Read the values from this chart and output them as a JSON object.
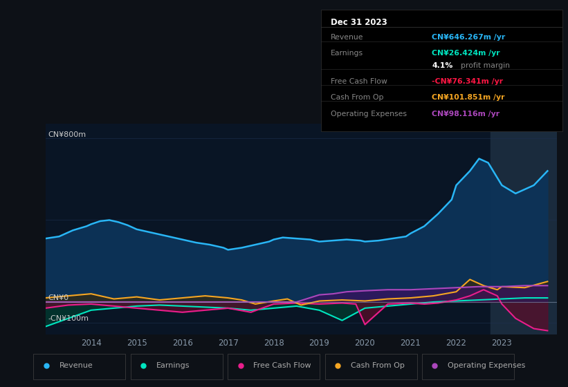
{
  "background_color": "#0d1117",
  "plot_bg_color": "#091525",
  "title": "Dec 31 2023",
  "y_label_top": "CN¥800m",
  "y_label_zero": "CN¥0",
  "y_label_neg": "-CN¥100m",
  "legend_items": [
    "Revenue",
    "Earnings",
    "Free Cash Flow",
    "Cash From Op",
    "Operating Expenses"
  ],
  "legend_colors": [
    "#29b6f6",
    "#00e5c0",
    "#e91e8c",
    "#f5a623",
    "#ab47bc"
  ],
  "info_box": {
    "title": "Dec 31 2023",
    "rows": [
      {
        "label": "Revenue",
        "value": "CN¥646.267m /yr",
        "value_color": "#29b6f6"
      },
      {
        "label": "Earnings",
        "value": "CN¥26.424m /yr",
        "value_color": "#00e5c0"
      },
      {
        "label": "",
        "value": "4.1% profit margin",
        "value_color": "#ffffff"
      },
      {
        "label": "Free Cash Flow",
        "value": "-CN¥76.341m /yr",
        "value_color": "#ff1744"
      },
      {
        "label": "Cash From Op",
        "value": "CN¥101.851m /yr",
        "value_color": "#f5a623"
      },
      {
        "label": "Operating Expenses",
        "value": "CN¥98.116m /yr",
        "value_color": "#ab47bc"
      }
    ]
  },
  "x_ticks": [
    2014,
    2015,
    2016,
    2017,
    2018,
    2019,
    2020,
    2021,
    2022,
    2023
  ],
  "ylim": [
    -160,
    870
  ],
  "revenue_x": [
    2013.0,
    2013.3,
    2013.6,
    2013.9,
    2014.0,
    2014.2,
    2014.4,
    2014.6,
    2014.8,
    2015.0,
    2015.2,
    2015.4,
    2015.7,
    2016.0,
    2016.3,
    2016.6,
    2016.9,
    2017.0,
    2017.3,
    2017.6,
    2017.9,
    2018.0,
    2018.2,
    2018.5,
    2018.8,
    2019.0,
    2019.3,
    2019.6,
    2019.9,
    2020.0,
    2020.3,
    2020.6,
    2020.9,
    2021.0,
    2021.3,
    2021.6,
    2021.9,
    2022.0,
    2022.3,
    2022.5,
    2022.7,
    2023.0,
    2023.3,
    2023.7,
    2024.0
  ],
  "revenue_y": [
    310,
    320,
    350,
    370,
    380,
    395,
    400,
    390,
    375,
    355,
    345,
    335,
    320,
    305,
    290,
    280,
    265,
    255,
    265,
    280,
    295,
    305,
    315,
    310,
    305,
    295,
    300,
    305,
    300,
    295,
    300,
    310,
    320,
    335,
    370,
    430,
    500,
    570,
    640,
    700,
    680,
    570,
    530,
    570,
    640
  ],
  "earnings_x": [
    2013.0,
    2013.5,
    2014.0,
    2014.5,
    2015.0,
    2015.5,
    2016.0,
    2016.5,
    2017.0,
    2017.5,
    2018.0,
    2018.5,
    2019.0,
    2019.5,
    2020.0,
    2020.5,
    2021.0,
    2021.5,
    2022.0,
    2022.5,
    2023.0,
    2023.5,
    2024.0
  ],
  "earnings_y": [
    -120,
    -80,
    -40,
    -30,
    -20,
    -15,
    -20,
    -25,
    -30,
    -40,
    -30,
    -20,
    -40,
    -90,
    -30,
    -20,
    -10,
    0,
    5,
    10,
    15,
    20,
    20
  ],
  "fcf_x": [
    2013.0,
    2013.5,
    2014.0,
    2014.5,
    2015.0,
    2015.5,
    2016.0,
    2016.5,
    2017.0,
    2017.5,
    2018.0,
    2018.5,
    2019.0,
    2019.5,
    2019.8,
    2020.0,
    2020.5,
    2021.0,
    2021.3,
    2021.6,
    2022.0,
    2022.3,
    2022.6,
    2022.9,
    2023.0,
    2023.3,
    2023.7,
    2024.0
  ],
  "fcf_y": [
    -30,
    -15,
    -10,
    -20,
    -30,
    -40,
    -50,
    -40,
    -30,
    -50,
    -10,
    -5,
    -10,
    -5,
    -10,
    -110,
    -10,
    -5,
    -10,
    -5,
    10,
    30,
    60,
    30,
    -10,
    -80,
    -130,
    -140
  ],
  "cfo_x": [
    2013.0,
    2013.5,
    2014.0,
    2014.5,
    2015.0,
    2015.5,
    2016.0,
    2016.5,
    2017.0,
    2017.3,
    2017.6,
    2018.0,
    2018.3,
    2018.6,
    2019.0,
    2019.5,
    2020.0,
    2020.5,
    2021.0,
    2021.5,
    2022.0,
    2022.3,
    2022.6,
    2022.9,
    2023.0,
    2023.5,
    2024.0
  ],
  "cfo_y": [
    20,
    30,
    40,
    15,
    25,
    10,
    20,
    30,
    20,
    10,
    -10,
    5,
    15,
    -15,
    5,
    10,
    5,
    15,
    20,
    30,
    50,
    110,
    80,
    60,
    75,
    70,
    100
  ],
  "opex_x": [
    2013.0,
    2013.5,
    2014.0,
    2014.5,
    2015.0,
    2015.5,
    2016.0,
    2016.5,
    2017.0,
    2017.5,
    2018.0,
    2018.5,
    2019.0,
    2019.3,
    2019.6,
    2020.0,
    2020.5,
    2021.0,
    2021.5,
    2022.0,
    2022.5,
    2023.0,
    2023.5,
    2024.0
  ],
  "opex_y": [
    0,
    0,
    0,
    0,
    0,
    0,
    0,
    0,
    0,
    0,
    0,
    0,
    35,
    40,
    50,
    55,
    60,
    60,
    65,
    70,
    75,
    75,
    80,
    80
  ]
}
